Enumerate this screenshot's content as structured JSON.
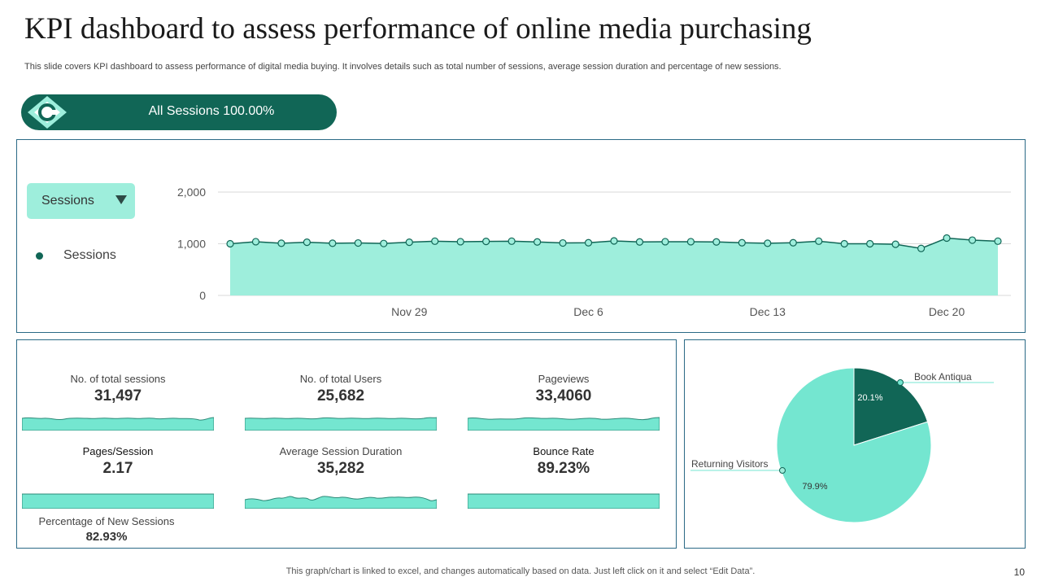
{
  "header": {
    "title": "KPI dashboard to assess performance of online media purchasing",
    "subtitle": "This slide covers KPI dashboard to assess performance of digital media buying. It involves details such as total number of sessions, average session duration and percentage of new sessions."
  },
  "banner": {
    "text": "All Sessions 100.00%",
    "icon": "segment-icon"
  },
  "sessions_panel": {
    "dropdown_label": "Sessions",
    "legend_label": "Sessions"
  },
  "kpis": [
    {
      "label": "No. of total sessions",
      "value": "31,497"
    },
    {
      "label": "No. of total Users",
      "value": "25,682"
    },
    {
      "label": "Pageviews",
      "value": "33,4060"
    },
    {
      "label": "Pages/Session",
      "value": "2.17"
    },
    {
      "label": "Average  Session Duration",
      "value": "35,282"
    },
    {
      "label": "Bounce Rate",
      "value": "89.23%"
    },
    {
      "label": "Percentage of New Sessions",
      "value": "82.93%"
    }
  ],
  "footer": {
    "note": "This graph/chart is linked to excel,  and changes automatically based on data. Just left click on it and select “Edit Data”.",
    "page_number": "10"
  },
  "colors": {
    "accent_dark": "#116656",
    "accent_light": "#74e6d0",
    "area_fill": "#9eeedc",
    "border": "#2b6a86"
  },
  "chart_data": [
    {
      "type": "area",
      "title": "Sessions",
      "series": [
        {
          "name": "Sessions",
          "values": [
            1000,
            1040,
            1010,
            1030,
            1010,
            1015,
            1005,
            1030,
            1050,
            1040,
            1045,
            1050,
            1035,
            1015,
            1020,
            1055,
            1035,
            1040,
            1040,
            1035,
            1020,
            1010,
            1020,
            1050,
            1000,
            1000,
            990,
            910,
            1110,
            1070,
            1050
          ]
        }
      ],
      "x_tick_labels": [
        "Nov 29",
        "Dec 6",
        "Dec 13",
        "Dec 20"
      ],
      "x_tick_indices": [
        7,
        14,
        21,
        28
      ],
      "ylim": [
        0,
        2000
      ],
      "y_ticks": [
        0,
        1000,
        2000
      ],
      "y_tick_labels": [
        "0",
        "1,000",
        "2,000"
      ],
      "grid": true
    },
    {
      "type": "pie",
      "slices": [
        {
          "label": "Book Antiqua",
          "value": 20.1,
          "display": "20.1%",
          "color": "#116656"
        },
        {
          "label": "Returning Visitors",
          "value": 79.9,
          "display": "79.9%",
          "color": "#74e6d0"
        }
      ]
    }
  ]
}
